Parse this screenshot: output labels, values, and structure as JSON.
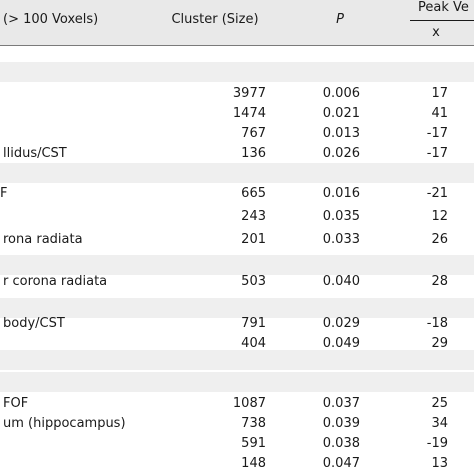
{
  "header": {
    "region": "(> 100 Voxels)",
    "cluster": "Cluster (Size)",
    "p": "P",
    "peak": "Peak Ve",
    "x": "x"
  },
  "rows": [
    {
      "region": "",
      "cluster": "3977",
      "p": "0.006",
      "x": "17"
    },
    {
      "region": "",
      "cluster": "1474",
      "p": "0.021",
      "x": "41"
    },
    {
      "region": "",
      "cluster": "767",
      "p": "0.013",
      "x": "-17"
    },
    {
      "region": "llidus/CST",
      "cluster": "136",
      "p": "0.026",
      "x": "-17"
    },
    {
      "region": "",
      "cluster": "665",
      "p": "0.016",
      "x": "-21"
    },
    {
      "region": "",
      "cluster": "243",
      "p": "0.035",
      "x": "12"
    },
    {
      "region": "rona radiata",
      "cluster": "201",
      "p": "0.033",
      "x": "26"
    },
    {
      "region": "r corona radiata",
      "cluster": "503",
      "p": "0.040",
      "x": "28"
    },
    {
      "region": "body/CST",
      "cluster": "791",
      "p": "0.029",
      "x": "-18"
    },
    {
      "region": "",
      "cluster": "404",
      "p": "0.049",
      "x": "29"
    },
    {
      "region": "FOF",
      "cluster": "1087",
      "p": "0.037",
      "x": "25"
    },
    {
      "region": "um (hippocampus)",
      "cluster": "738",
      "p": "0.039",
      "x": "34"
    },
    {
      "region": "",
      "cluster": "591",
      "p": "0.038",
      "x": "-19"
    },
    {
      "region": "",
      "cluster": "148",
      "p": "0.047",
      "x": "13"
    }
  ],
  "section_marks": [
    "F"
  ]
}
